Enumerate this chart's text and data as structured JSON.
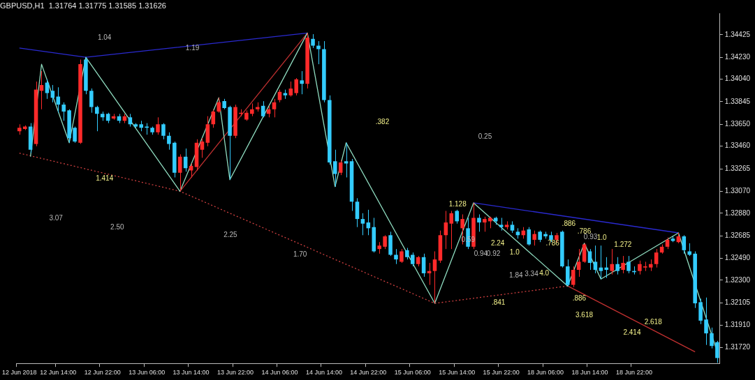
{
  "chart_data": {
    "type": "candlestick",
    "title": "GBPUSD,H1  1.31764 1.31775 1.31585 1.31626",
    "categories": [
      "12 Jun 2018",
      null,
      null,
      null,
      null,
      null,
      null,
      "12 Jun 14:00",
      null,
      null,
      null,
      null,
      null,
      null,
      null,
      "12 Jun 22:00",
      null,
      null,
      null,
      null,
      null,
      null,
      null,
      "13 Jun 06:00",
      null,
      null,
      null,
      null,
      null,
      null,
      null,
      "13 Jun 14:00",
      null,
      null,
      null,
      null,
      null,
      null,
      null,
      "13 Jun 22:00",
      null,
      null,
      null,
      null,
      null,
      null,
      null,
      "14 Jun 06:00",
      null,
      null,
      null,
      null,
      null,
      null,
      null,
      "14 Jun 14:00",
      null,
      null,
      null,
      null,
      null,
      null,
      null,
      "14 Jun 22:00",
      null,
      null,
      null,
      null,
      null,
      null,
      null,
      "15 Jun 06:00",
      null,
      null,
      null,
      null,
      null,
      null,
      null,
      "15 Jun 14:00",
      null,
      null,
      null,
      null,
      null,
      null,
      null,
      "15 Jun 22:00",
      null,
      null,
      null,
      null,
      null,
      null,
      null,
      "18 Jun 06:00",
      null,
      null,
      null,
      null,
      null,
      null,
      null,
      "18 Jun 14:00",
      null,
      null,
      null,
      null,
      null,
      null,
      null,
      "18 Jun 22:00",
      null,
      null,
      null,
      null,
      null,
      null,
      null,
      null,
      null,
      null,
      null,
      null,
      null,
      null,
      null
    ],
    "ohlc": [
      [
        1.3359,
        1.3365,
        1.3356,
        1.3362
      ],
      [
        1.3361,
        1.3364,
        1.336,
        1.3363
      ],
      [
        1.3363,
        1.3366,
        1.334,
        1.3343
      ],
      [
        1.3348,
        1.3402,
        1.3346,
        1.3395
      ],
      [
        1.3394,
        1.3411,
        1.3378,
        1.3399
      ],
      [
        1.3401,
        1.3404,
        1.3387,
        1.3392
      ],
      [
        1.3394,
        1.3399,
        1.3384,
        1.3388
      ],
      [
        1.3389,
        1.3397,
        1.3375,
        1.3382
      ],
      [
        1.3382,
        1.3384,
        1.3368,
        1.3376
      ],
      [
        1.3377,
        1.3378,
        1.3349,
        1.3353
      ],
      [
        1.3362,
        1.3363,
        1.3349,
        1.335
      ],
      [
        1.3349,
        1.3421,
        1.3348,
        1.3417
      ],
      [
        1.3421,
        1.3423,
        1.3391,
        1.3394
      ],
      [
        1.3394,
        1.3396,
        1.3375,
        1.338
      ],
      [
        1.338,
        1.3381,
        1.3359,
        1.3374
      ],
      [
        1.3374,
        1.3376,
        1.3368,
        1.3371
      ],
      [
        1.3374,
        1.3375,
        1.3366,
        1.3368
      ],
      [
        1.337,
        1.3374,
        1.3369,
        1.3372
      ],
      [
        1.3372,
        1.3374,
        1.3366,
        1.3368
      ],
      [
        1.3368,
        1.3374,
        1.3366,
        1.3372
      ],
      [
        1.3371,
        1.3374,
        1.3363,
        1.3365
      ],
      [
        1.3365,
        1.3366,
        1.3362,
        1.3363
      ],
      [
        1.3365,
        1.3368,
        1.3359,
        1.3362
      ],
      [
        1.3363,
        1.3366,
        1.3356,
        1.3362
      ],
      [
        1.3362,
        1.3363,
        1.3356,
        1.3358
      ],
      [
        1.3358,
        1.3371,
        1.3356,
        1.3365
      ],
      [
        1.3365,
        1.3366,
        1.3352,
        1.3355
      ],
      [
        1.3355,
        1.3358,
        1.3343,
        1.3348
      ],
      [
        1.3349,
        1.335,
        1.3319,
        1.3323
      ],
      [
        1.3323,
        1.3339,
        1.3307,
        1.3337
      ],
      [
        1.3337,
        1.3344,
        1.3324,
        1.3327
      ],
      [
        1.3325,
        1.3331,
        1.3319,
        1.3329
      ],
      [
        1.3328,
        1.3352,
        1.3325,
        1.3349
      ],
      [
        1.3343,
        1.3353,
        1.3336,
        1.335
      ],
      [
        1.3349,
        1.3372,
        1.3346,
        1.3365
      ],
      [
        1.3365,
        1.3378,
        1.3362,
        1.3376
      ],
      [
        1.3376,
        1.3388,
        1.3375,
        1.3384
      ],
      [
        1.3385,
        1.3387,
        1.3378,
        1.3379
      ],
      [
        1.338,
        1.3381,
        1.3317,
        1.3355
      ],
      [
        1.3355,
        1.3382,
        1.3353,
        1.338
      ],
      [
        1.3374,
        1.3378,
        1.3372,
        1.3375
      ],
      [
        1.3369,
        1.3377,
        1.3368,
        1.3375
      ],
      [
        1.3374,
        1.3383,
        1.3372,
        1.3378
      ],
      [
        1.3378,
        1.3384,
        1.3376,
        1.338
      ],
      [
        1.3381,
        1.3385,
        1.3371,
        1.3372
      ],
      [
        1.3374,
        1.3381,
        1.3371,
        1.3378
      ],
      [
        1.3378,
        1.3387,
        1.3371,
        1.3384
      ],
      [
        1.3386,
        1.3395,
        1.3384,
        1.3393
      ],
      [
        1.3392,
        1.3395,
        1.3387,
        1.339
      ],
      [
        1.339,
        1.3402,
        1.3389,
        1.3396
      ],
      [
        1.3392,
        1.3405,
        1.339,
        1.3404
      ],
      [
        1.3403,
        1.3411,
        1.3391,
        1.34
      ],
      [
        1.34,
        1.3444,
        1.3396,
        1.344
      ],
      [
        1.3439,
        1.3443,
        1.3431,
        1.3433
      ],
      [
        1.3433,
        1.3437,
        1.3417,
        1.343
      ],
      [
        1.343,
        1.3437,
        1.3384,
        1.3386
      ],
      [
        1.3386,
        1.339,
        1.333,
        1.3332
      ],
      [
        1.3333,
        1.3343,
        1.3311,
        1.3322
      ],
      [
        1.3323,
        1.3334,
        1.3321,
        1.3332
      ],
      [
        1.3333,
        1.3349,
        1.3319,
        1.3331
      ],
      [
        1.3333,
        1.3335,
        1.329,
        1.3298
      ],
      [
        1.3298,
        1.3301,
        1.3276,
        1.3283
      ],
      [
        1.3283,
        1.3288,
        1.3269,
        1.3279
      ],
      [
        1.328,
        1.3291,
        1.3269,
        1.3275
      ],
      [
        1.3276,
        1.3284,
        1.3254,
        1.3255
      ],
      [
        1.3257,
        1.3263,
        1.3253,
        1.326
      ],
      [
        1.3259,
        1.3269,
        1.3257,
        1.3268
      ],
      [
        1.3269,
        1.3272,
        1.3251,
        1.3252
      ],
      [
        1.3252,
        1.3257,
        1.3244,
        1.3248
      ],
      [
        1.3246,
        1.3257,
        1.3245,
        1.3255
      ],
      [
        1.3256,
        1.3258,
        1.3248,
        1.325
      ],
      [
        1.3252,
        1.3254,
        1.3242,
        1.3244
      ],
      [
        1.3244,
        1.3251,
        1.3242,
        1.325
      ],
      [
        1.325,
        1.3253,
        1.3233,
        1.3236
      ],
      [
        1.3236,
        1.3245,
        1.3226,
        1.3238
      ],
      [
        1.3238,
        1.3255,
        1.321,
        1.3248
      ],
      [
        1.3247,
        1.3273,
        1.3245,
        1.3269
      ],
      [
        1.3269,
        1.329,
        1.3257,
        1.328
      ],
      [
        1.3279,
        1.329,
        1.3257,
        1.3288
      ],
      [
        1.329,
        1.3291,
        1.3279,
        1.3281
      ],
      [
        1.3275,
        1.3287,
        1.3261,
        1.3283
      ],
      [
        1.3275,
        1.3284,
        1.3257,
        1.3259
      ],
      [
        1.3259,
        1.3297,
        1.3257,
        1.3284
      ],
      [
        1.3284,
        1.3287,
        1.3272,
        1.328
      ],
      [
        1.328,
        1.3285,
        1.3272,
        1.3283
      ],
      [
        1.3281,
        1.3285,
        1.3275,
        1.3284
      ],
      [
        1.3284,
        1.3285,
        1.3278,
        1.3281
      ],
      [
        1.3278,
        1.3284,
        1.3273,
        1.3276
      ],
      [
        1.3276,
        1.3281,
        1.3274,
        1.3278
      ],
      [
        1.3278,
        1.3281,
        1.3271,
        1.3273
      ],
      [
        1.3272,
        1.3275,
        1.3266,
        1.3269
      ],
      [
        1.3269,
        1.3276,
        1.3266,
        1.3273
      ],
      [
        1.3274,
        1.3276,
        1.326,
        1.3261
      ],
      [
        1.3265,
        1.3273,
        1.326,
        1.327
      ],
      [
        1.3272,
        1.3273,
        1.3263,
        1.3265
      ],
      [
        1.327,
        1.3272,
        1.3266,
        1.3268
      ],
      [
        1.3269,
        1.3272,
        1.3263,
        1.3265
      ],
      [
        1.3265,
        1.3271,
        1.3263,
        1.3269
      ],
      [
        1.3272,
        1.3273,
        1.3241,
        1.3242
      ],
      [
        1.3242,
        1.3248,
        1.3225,
        1.3226
      ],
      [
        1.3226,
        1.3242,
        1.3224,
        1.3239
      ],
      [
        1.3239,
        1.3257,
        1.3233,
        1.3246
      ],
      [
        1.3246,
        1.3262,
        1.3245,
        1.3261
      ],
      [
        1.3255,
        1.3257,
        1.3239,
        1.3245
      ],
      [
        1.3246,
        1.326,
        1.3236,
        1.3239
      ],
      [
        1.3241,
        1.326,
        1.3231,
        1.3238
      ],
      [
        1.3241,
        1.325,
        1.3232,
        1.3239
      ],
      [
        1.3238,
        1.3257,
        1.3235,
        1.3244
      ],
      [
        1.3244,
        1.325,
        1.3235,
        1.3238
      ],
      [
        1.3239,
        1.3251,
        1.3236,
        1.3245
      ],
      [
        1.3246,
        1.3251,
        1.3236,
        1.3238
      ],
      [
        1.3238,
        1.3242,
        1.3235,
        1.3237
      ],
      [
        1.3238,
        1.3247,
        1.3235,
        1.3244
      ],
      [
        1.3241,
        1.3246,
        1.3238,
        1.3242
      ],
      [
        1.3241,
        1.3248,
        1.3238,
        1.3244
      ],
      [
        1.3244,
        1.3257,
        1.3241,
        1.3254
      ],
      [
        1.3254,
        1.3261,
        1.3253,
        1.3259
      ],
      [
        1.3259,
        1.3267,
        1.3257,
        1.3265
      ],
      [
        1.3266,
        1.3268,
        1.3263,
        1.3264
      ],
      [
        1.3263,
        1.3271,
        1.3262,
        1.3268
      ],
      [
        1.3268,
        1.3269,
        1.3253,
        1.3256
      ],
      [
        1.3255,
        1.3262,
        1.3251,
        1.3252
      ],
      [
        1.3253,
        1.3255,
        1.3206,
        1.321
      ],
      [
        1.3211,
        1.3214,
        1.3192,
        1.3195
      ],
      [
        1.3196,
        1.3215,
        1.3174,
        1.3184
      ],
      [
        1.3184,
        1.3189,
        1.3171,
        1.3173
      ],
      [
        1.31764,
        1.31775,
        1.31585,
        1.31626
      ]
    ],
    "colors": [
      "#ff2a2a",
      "#ff2a2a",
      "#33ccff",
      "#ff2a2a",
      "#ff2a2a",
      "#33ccff",
      "#33ccff",
      "#33ccff",
      "#33ccff",
      "#33ccff",
      "#33ccff",
      "#ff2a2a",
      "#33ccff",
      "#33ccff",
      "#33ccff",
      "#33ccff",
      "#33ccff",
      "#ff2a2a",
      "#33ccff",
      "#ff2a2a",
      "#33ccff",
      "#33ccff",
      "#33ccff",
      "#33ccff",
      "#33ccff",
      "#ff2a2a",
      "#33ccff",
      "#33ccff",
      "#33ccff",
      "#ff2a2a",
      "#33ccff",
      "#ff2a2a",
      "#ff2a2a",
      "#ff2a2a",
      "#ff2a2a",
      "#ff2a2a",
      "#ff2a2a",
      "#33ccff",
      "#33ccff",
      "#ff2a2a",
      "#ff2a2a",
      "#ff2a2a",
      "#ff2a2a",
      "#ff2a2a",
      "#33ccff",
      "#ff2a2a",
      "#ff2a2a",
      "#ff2a2a",
      "#33ccff",
      "#ff2a2a",
      "#ff2a2a",
      "#33ccff",
      "#ff2a2a",
      "#33ccff",
      "#33ccff",
      "#33ccff",
      "#33ccff",
      "#33ccff",
      "#ff2a2a",
      "#33ccff",
      "#33ccff",
      "#33ccff",
      "#33ccff",
      "#33ccff",
      "#33ccff",
      "#ff2a2a",
      "#ff2a2a",
      "#33ccff",
      "#33ccff",
      "#ff2a2a",
      "#33ccff",
      "#33ccff",
      "#ff2a2a",
      "#33ccff",
      "#ff2a2a",
      "#ff2a2a",
      "#ff2a2a",
      "#ff2a2a",
      "#ff2a2a",
      "#33ccff",
      "#ff2a2a",
      "#33ccff",
      "#ff2a2a",
      "#33ccff",
      "#ff2a2a",
      "#ff2a2a",
      "#33ccff",
      "#33ccff",
      "#ff2a2a",
      "#33ccff",
      "#33ccff",
      "#ff2a2a",
      "#33ccff",
      "#ff2a2a",
      "#33ccff",
      "#33ccff",
      "#33ccff",
      "#ff2a2a",
      "#33ccff",
      "#33ccff",
      "#ff2a2a",
      "#ff2a2a",
      "#ff2a2a",
      "#33ccff",
      "#33ccff",
      "#33ccff",
      "#33ccff",
      "#ff2a2a",
      "#33ccff",
      "#ff2a2a",
      "#33ccff",
      "#33ccff",
      "#ff2a2a",
      "#ff2a2a",
      "#ff2a2a",
      "#ff2a2a",
      "#ff2a2a",
      "#ff2a2a",
      "#33ccff",
      "#ff2a2a",
      "#33ccff",
      "#33ccff",
      "#33ccff",
      "#33ccff",
      "#33ccff",
      "#33ccff",
      "#33ccff"
    ],
    "series": [
      {
        "type": "line",
        "color": "#8fdcc0",
        "values": [
          null,
          null,
          1.3337,
          null,
          1.3417,
          null,
          null,
          null,
          null,
          1.3349,
          null,
          null,
          1.3423,
          null,
          null,
          null,
          null,
          null,
          null,
          null,
          null,
          null,
          null,
          null,
          null,
          null,
          null,
          null,
          null,
          1.3307,
          null,
          null,
          null,
          null,
          null,
          null,
          1.3388,
          null,
          1.3317,
          null,
          null,
          null,
          null,
          null,
          null,
          null,
          null,
          null,
          null,
          null,
          null,
          null,
          1.3444,
          null,
          null,
          null,
          null,
          1.3311,
          null,
          1.3349,
          null,
          null,
          null,
          null,
          null,
          null,
          null,
          null,
          null,
          null,
          null,
          null,
          null,
          null,
          null,
          1.321,
          null,
          null,
          null,
          null,
          null,
          null,
          1.3297,
          null,
          null,
          null,
          null,
          null,
          null,
          null,
          null,
          null,
          null,
          null,
          null,
          null,
          null,
          null,
          null,
          1.3225,
          null,
          null,
          1.3262,
          null,
          null,
          1.3231,
          null,
          null,
          null,
          null,
          null,
          null,
          null,
          null,
          null,
          null,
          null,
          null,
          null,
          1.3271,
          null,
          null,
          null,
          null,
          null,
          null,
          1.3168
        ]
      },
      {
        "type": "line",
        "color": "#d04040",
        "line_style": "dotted",
        "values": [
          1.334,
          null,
          null,
          null,
          null,
          null,
          null,
          null,
          null,
          null,
          null,
          null,
          null,
          null,
          null,
          null,
          null,
          null,
          null,
          null,
          null,
          null,
          null,
          null,
          null,
          null,
          null,
          null,
          null,
          1.3307,
          null,
          null,
          null,
          null,
          null,
          null,
          null,
          null,
          null,
          null,
          null,
          null,
          null,
          null,
          null,
          null,
          null,
          null,
          null,
          null,
          null,
          null,
          null,
          null,
          null,
          null,
          null,
          null,
          null,
          null,
          null,
          null,
          null,
          null,
          null,
          null,
          null,
          null,
          null,
          null,
          null,
          null,
          null,
          null,
          null,
          1.321,
          null,
          null,
          null,
          null,
          null,
          null,
          null,
          null,
          null,
          null,
          null,
          null,
          null,
          null,
          null,
          null,
          null,
          null,
          null,
          null,
          null,
          null,
          null,
          1.3225,
          null,
          null,
          null,
          null,
          null,
          null,
          null,
          null,
          null,
          null,
          null,
          null,
          null,
          null,
          null,
          null,
          null,
          null,
          null,
          null,
          null,
          null,
          null,
          null,
          null,
          null,
          null
        ]
      },
      {
        "type": "line",
        "color": "#c03030",
        "values": [
          null,
          null,
          null,
          null,
          null,
          null,
          null,
          null,
          null,
          null,
          null,
          null,
          null,
          null,
          null,
          null,
          null,
          null,
          null,
          null,
          null,
          null,
          null,
          null,
          null,
          null,
          null,
          null,
          null,
          1.3307,
          null,
          null,
          null,
          null,
          null,
          null,
          null,
          null,
          null,
          null,
          null,
          null,
          null,
          null,
          null,
          null,
          null,
          null,
          null,
          null,
          null,
          null,
          1.3444,
          null,
          null,
          null,
          null,
          null,
          null,
          null,
          null,
          null,
          null,
          null,
          null,
          null,
          null,
          null,
          null,
          null,
          null,
          null,
          null,
          null,
          null,
          null,
          null,
          null,
          null,
          null,
          null,
          null,
          null,
          null,
          null,
          null,
          null,
          null,
          null,
          null,
          null,
          null,
          null,
          null,
          null,
          null,
          null,
          null,
          null,
          null,
          null,
          null,
          null,
          null,
          null,
          null,
          null,
          null,
          null,
          null,
          null,
          null,
          null,
          null,
          null,
          null,
          null,
          null,
          null,
          null,
          null,
          null,
          null,
          null,
          null,
          null,
          null
        ]
      },
      {
        "type": "line",
        "color": "#c03030",
        "values": [
          null,
          null,
          null,
          null,
          null,
          null,
          null,
          null,
          null,
          null,
          null,
          null,
          null,
          null,
          null,
          null,
          null,
          null,
          null,
          null,
          null,
          null,
          null,
          null,
          null,
          null,
          null,
          null,
          null,
          null,
          null,
          null,
          null,
          null,
          null,
          null,
          null,
          null,
          null,
          null,
          null,
          null,
          null,
          null,
          null,
          null,
          null,
          null,
          null,
          null,
          null,
          null,
          null,
          null,
          null,
          null,
          null,
          null,
          null,
          null,
          null,
          null,
          null,
          null,
          null,
          null,
          null,
          null,
          null,
          null,
          null,
          null,
          null,
          null,
          null,
          null,
          null,
          null,
          null,
          null,
          null,
          null,
          null,
          null,
          null,
          null,
          null,
          null,
          null,
          null,
          null,
          null,
          null,
          null,
          null,
          null,
          null,
          null,
          null,
          1.3225,
          null,
          null,
          null,
          null,
          null,
          null,
          null,
          null,
          null,
          null,
          null,
          null,
          null,
          null,
          null,
          null,
          null,
          null,
          null,
          null,
          null,
          null,
          1.3168,
          null,
          null,
          null,
          null
        ]
      },
      {
        "type": "line",
        "color": "#2a2ad0",
        "values": [
          1.3431,
          null,
          null,
          null,
          null,
          null,
          null,
          null,
          null,
          null,
          null,
          null,
          1.3423,
          null,
          null,
          null,
          null,
          null,
          null,
          null,
          null,
          null,
          null,
          null,
          null,
          null,
          null,
          null,
          null,
          null,
          null,
          null,
          null,
          null,
          null,
          null,
          null,
          null,
          null,
          null,
          null,
          null,
          null,
          null,
          null,
          null,
          null,
          null,
          null,
          null,
          null,
          null,
          1.3444,
          null,
          null,
          null,
          null,
          null,
          null,
          null,
          null,
          null,
          null,
          null,
          null,
          null,
          null,
          null,
          null,
          null,
          null,
          null,
          null,
          null,
          null,
          null,
          null,
          null,
          null,
          null,
          null,
          null,
          null,
          null,
          null,
          null,
          null,
          null,
          null,
          null,
          null,
          null,
          null,
          null,
          null,
          null,
          null,
          null,
          null,
          null,
          null,
          null,
          null,
          null,
          null,
          null,
          null,
          null,
          null,
          null,
          null,
          null,
          null,
          null,
          null,
          null,
          null,
          null,
          null,
          null,
          null,
          null,
          null,
          null,
          null,
          null,
          null
        ]
      },
      {
        "type": "line",
        "color": "#2a2ad0",
        "values": [
          null,
          null,
          null,
          null,
          null,
          null,
          null,
          null,
          null,
          null,
          null,
          null,
          null,
          null,
          null,
          null,
          null,
          null,
          null,
          null,
          null,
          null,
          null,
          null,
          null,
          null,
          null,
          null,
          null,
          null,
          null,
          null,
          null,
          null,
          null,
          null,
          null,
          null,
          null,
          null,
          null,
          null,
          null,
          null,
          null,
          null,
          null,
          null,
          null,
          null,
          null,
          null,
          null,
          null,
          null,
          null,
          null,
          null,
          null,
          null,
          null,
          null,
          null,
          null,
          null,
          null,
          null,
          null,
          null,
          null,
          null,
          null,
          null,
          null,
          null,
          null,
          null,
          null,
          null,
          null,
          null,
          null,
          1.3297,
          null,
          null,
          null,
          null,
          null,
          null,
          null,
          null,
          null,
          null,
          null,
          null,
          null,
          null,
          null,
          null,
          null,
          null,
          null,
          null,
          null,
          null,
          null,
          null,
          null,
          null,
          null,
          null,
          null,
          null,
          null,
          null,
          null,
          null,
          null,
          null,
          1.3271,
          null,
          null,
          null,
          null,
          null,
          null,
          null
        ]
      }
    ],
    "annotations": [
      "1.04",
      "1.19",
      ".382",
      "0.25",
      "1.414",
      "3.07",
      "2.50",
      "2.25",
      "1.70",
      "1.128",
      "0.59",
      "0.94",
      "0.92",
      "2.24",
      "1.0",
      "1.84",
      "3.34",
      "4.0",
      ".786",
      ".886",
      ".786",
      "0.93",
      "1.0",
      "1.272",
      ".841",
      ".886",
      "3.618",
      "2.414",
      "2.618"
    ],
    "ylim": [
      1.3158,
      1.3461
    ],
    "yticks": [
      {
        "value": 1.34425,
        "label": "1.34425"
      },
      {
        "value": 1.3423,
        "label": "1.34230"
      },
      {
        "value": 1.3404,
        "label": "1.34040"
      },
      {
        "value": 1.33845,
        "label": "1.33845"
      },
      {
        "value": 1.3365,
        "label": "1.33650"
      },
      {
        "value": 1.3346,
        "label": "1.33460"
      },
      {
        "value": 1.33265,
        "label": "1.33265"
      },
      {
        "value": 1.3307,
        "label": "1.33070"
      },
      {
        "value": 1.3288,
        "label": "1.32880"
      },
      {
        "value": 1.32685,
        "label": "1.32685"
      },
      {
        "value": 1.3249,
        "label": "1.32490"
      },
      {
        "value": 1.323,
        "label": "1.32300"
      },
      {
        "value": 1.32105,
        "label": "1.32105"
      },
      {
        "value": 1.3191,
        "label": "1.31910"
      },
      {
        "value": 1.3172,
        "label": "1.31720"
      }
    ],
    "legend": false
  }
}
